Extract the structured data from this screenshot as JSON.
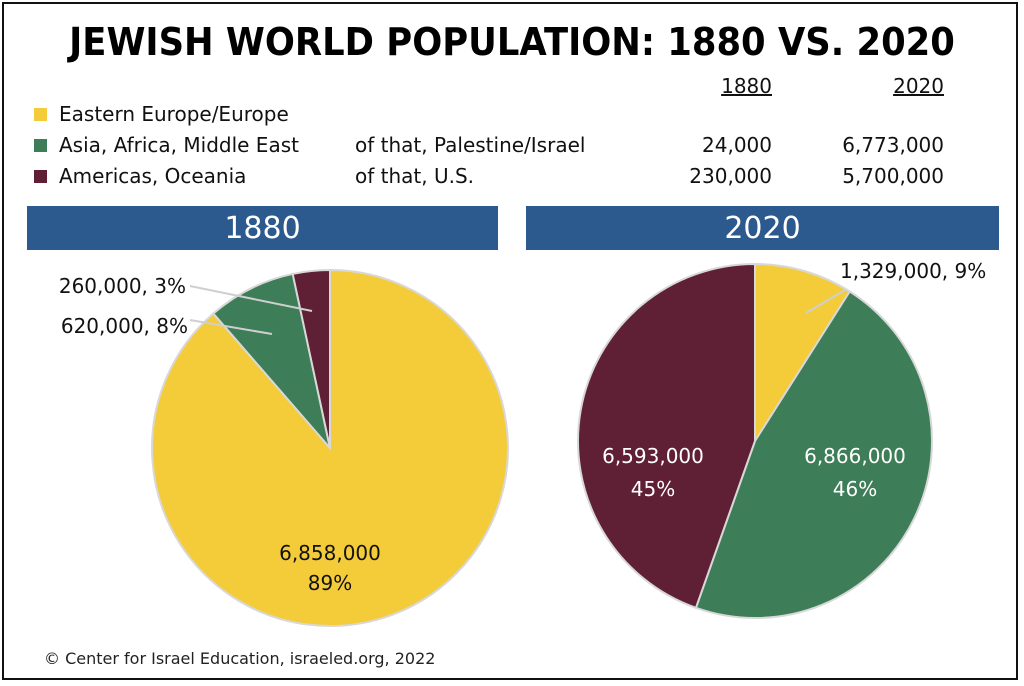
{
  "title": "JEWISH WORLD POPULATION: 1880 VS. 2020",
  "legend": [
    {
      "label": "Eastern Europe/Europe",
      "color": "#f4cc3a"
    },
    {
      "label": "Asia, Africa, Middle East",
      "color": "#3d7d57"
    },
    {
      "label": "Americas, Oceania",
      "color": "#5f1f35"
    }
  ],
  "subtable": {
    "col_1880": "1880",
    "col_2020": "2020",
    "rows": [
      {
        "label": "of that, Palestine/Israel",
        "v1880": "24,000",
        "v2020": "6,773,000"
      },
      {
        "label": "of that, U.S.",
        "v1880": "230,000",
        "v2020": "5,700,000"
      }
    ]
  },
  "footer": "© Center for Israel Education, israeled.org, 2022",
  "chart_data": [
    {
      "type": "pie",
      "title": "1880",
      "slices": [
        {
          "category": "Eastern Europe/Europe",
          "value": 6858000,
          "percent": 89,
          "value_label": "6,858,000",
          "percent_label": "89%",
          "color": "#f4cc3a"
        },
        {
          "category": "Asia, Africa, Middle East",
          "value": 620000,
          "percent": 8,
          "value_label": "620,000, 8%",
          "color": "#3d7d57"
        },
        {
          "category": "Americas, Oceania",
          "value": 260000,
          "percent": 3,
          "value_label": "260,000, 3%",
          "color": "#5f1f35"
        }
      ]
    },
    {
      "type": "pie",
      "title": "2020",
      "slices": [
        {
          "category": "Eastern Europe/Europe",
          "value": 1329000,
          "percent": 9,
          "value_label": "1,329,000, 9%",
          "color": "#f4cc3a"
        },
        {
          "category": "Asia, Africa, Middle East",
          "value": 6866000,
          "percent": 46,
          "value_label": "6,866,000",
          "percent_label": "46%",
          "color": "#3d7d57"
        },
        {
          "category": "Americas, Oceania",
          "value": 6593000,
          "percent": 45,
          "value_label": "6,593,000",
          "percent_label": "45%",
          "color": "#5f1f35"
        }
      ]
    }
  ]
}
